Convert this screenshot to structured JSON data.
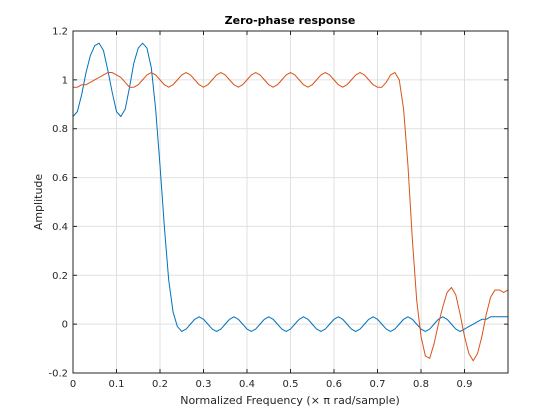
{
  "chart_data": {
    "type": "line",
    "title": "Zero-phase response",
    "xlabel": "Normalized Frequency (× π rad/sample)",
    "ylabel": "Amplitude",
    "xlim": [
      0,
      1
    ],
    "ylim": [
      -0.2,
      1.2
    ],
    "xticks": [
      "0",
      "0.1",
      "0.2",
      "0.3",
      "0.4",
      "0.5",
      "0.6",
      "0.7",
      "0.8",
      "0.9"
    ],
    "xtick_values": [
      0,
      0.1,
      0.2,
      0.3,
      0.4,
      0.5,
      0.6,
      0.7,
      0.8,
      0.9
    ],
    "yticks": [
      "-0.2",
      "0",
      "0.2",
      "0.4",
      "0.6",
      "0.8",
      "1",
      "1.2"
    ],
    "ytick_values": [
      -0.2,
      0,
      0.2,
      0.4,
      0.6,
      0.8,
      1.0,
      1.2
    ],
    "grid": true,
    "series": [
      {
        "color": "#0072BD",
        "x": [
          0,
          0.01,
          0.02,
          0.03,
          0.04,
          0.05,
          0.06,
          0.07,
          0.08,
          0.09,
          0.1,
          0.11,
          0.12,
          0.13,
          0.14,
          0.15,
          0.16,
          0.17,
          0.18,
          0.19,
          0.2,
          0.21,
          0.22,
          0.23,
          0.24,
          0.25,
          0.26,
          0.27,
          0.28,
          0.29,
          0.3,
          0.31,
          0.32,
          0.33,
          0.34,
          0.35,
          0.36,
          0.37,
          0.38,
          0.39,
          0.4,
          0.41,
          0.42,
          0.43,
          0.44,
          0.45,
          0.46,
          0.47,
          0.48,
          0.49,
          0.5,
          0.51,
          0.52,
          0.53,
          0.54,
          0.55,
          0.56,
          0.57,
          0.58,
          0.59,
          0.6,
          0.61,
          0.62,
          0.63,
          0.64,
          0.65,
          0.66,
          0.67,
          0.68,
          0.69,
          0.7,
          0.71,
          0.72,
          0.73,
          0.74,
          0.75,
          0.76,
          0.77,
          0.78,
          0.79,
          0.8,
          0.81,
          0.82,
          0.83,
          0.84,
          0.85,
          0.86,
          0.87,
          0.88,
          0.89,
          0.9,
          0.91,
          0.92,
          0.93,
          0.94,
          0.95,
          0.96,
          0.97,
          0.98,
          0.99,
          1.0
        ],
        "y": [
          0.85,
          0.87,
          0.94,
          1.03,
          1.1,
          1.14,
          1.15,
          1.12,
          1.04,
          0.95,
          0.87,
          0.85,
          0.88,
          0.97,
          1.07,
          1.13,
          1.15,
          1.13,
          1.05,
          0.88,
          0.65,
          0.4,
          0.18,
          0.05,
          -0.01,
          -0.03,
          -0.02,
          0.0,
          0.02,
          0.03,
          0.02,
          0.0,
          -0.02,
          -0.03,
          -0.02,
          0.0,
          0.02,
          0.03,
          0.02,
          0.0,
          -0.02,
          -0.03,
          -0.02,
          0.0,
          0.02,
          0.03,
          0.02,
          0.0,
          -0.02,
          -0.03,
          -0.02,
          0.0,
          0.02,
          0.03,
          0.02,
          0.0,
          -0.02,
          -0.03,
          -0.02,
          0.0,
          0.02,
          0.03,
          0.02,
          0.0,
          -0.02,
          -0.03,
          -0.02,
          0.0,
          0.02,
          0.03,
          0.02,
          0.0,
          -0.02,
          -0.03,
          -0.02,
          0.0,
          0.02,
          0.03,
          0.02,
          0.0,
          -0.02,
          -0.03,
          -0.02,
          0.0,
          0.02,
          0.03,
          0.02,
          0.0,
          -0.02,
          -0.03,
          -0.02,
          -0.01,
          0.0,
          0.01,
          0.02,
          0.02,
          0.03,
          0.03,
          0.03,
          0.03,
          0.03
        ]
      },
      {
        "color": "#D95319",
        "x": [
          0,
          0.01,
          0.02,
          0.03,
          0.04,
          0.05,
          0.06,
          0.07,
          0.08,
          0.09,
          0.1,
          0.11,
          0.12,
          0.13,
          0.14,
          0.15,
          0.16,
          0.17,
          0.18,
          0.19,
          0.2,
          0.21,
          0.22,
          0.23,
          0.24,
          0.25,
          0.26,
          0.27,
          0.28,
          0.29,
          0.3,
          0.31,
          0.32,
          0.33,
          0.34,
          0.35,
          0.36,
          0.37,
          0.38,
          0.39,
          0.4,
          0.41,
          0.42,
          0.43,
          0.44,
          0.45,
          0.46,
          0.47,
          0.48,
          0.49,
          0.5,
          0.51,
          0.52,
          0.53,
          0.54,
          0.55,
          0.56,
          0.57,
          0.58,
          0.59,
          0.6,
          0.61,
          0.62,
          0.63,
          0.64,
          0.65,
          0.66,
          0.67,
          0.68,
          0.69,
          0.7,
          0.71,
          0.72,
          0.73,
          0.74,
          0.75,
          0.76,
          0.77,
          0.78,
          0.79,
          0.8,
          0.81,
          0.82,
          0.83,
          0.84,
          0.85,
          0.86,
          0.87,
          0.88,
          0.89,
          0.9,
          0.91,
          0.92,
          0.93,
          0.94,
          0.95,
          0.96,
          0.97,
          0.98,
          0.99,
          1.0
        ],
        "y": [
          0.97,
          0.97,
          0.98,
          0.98,
          0.99,
          1.0,
          1.01,
          1.02,
          1.03,
          1.03,
          1.02,
          1.01,
          0.99,
          0.97,
          0.97,
          0.98,
          1.0,
          1.02,
          1.03,
          1.02,
          1.0,
          0.98,
          0.97,
          0.98,
          1.0,
          1.02,
          1.03,
          1.02,
          1.0,
          0.98,
          0.97,
          0.98,
          1.0,
          1.02,
          1.03,
          1.02,
          1.0,
          0.98,
          0.97,
          0.98,
          1.0,
          1.02,
          1.03,
          1.02,
          1.0,
          0.98,
          0.97,
          0.98,
          1.0,
          1.02,
          1.03,
          1.02,
          1.0,
          0.98,
          0.97,
          0.98,
          1.0,
          1.02,
          1.03,
          1.02,
          1.0,
          0.98,
          0.97,
          0.98,
          1.0,
          1.02,
          1.03,
          1.02,
          1.0,
          0.98,
          0.97,
          0.97,
          0.99,
          1.02,
          1.03,
          1.0,
          0.88,
          0.65,
          0.35,
          0.1,
          -0.05,
          -0.13,
          -0.14,
          -0.08,
          0.0,
          0.07,
          0.13,
          0.15,
          0.12,
          0.04,
          -0.05,
          -0.12,
          -0.15,
          -0.12,
          -0.05,
          0.04,
          0.11,
          0.14,
          0.14,
          0.13,
          0.14
        ]
      }
    ]
  }
}
